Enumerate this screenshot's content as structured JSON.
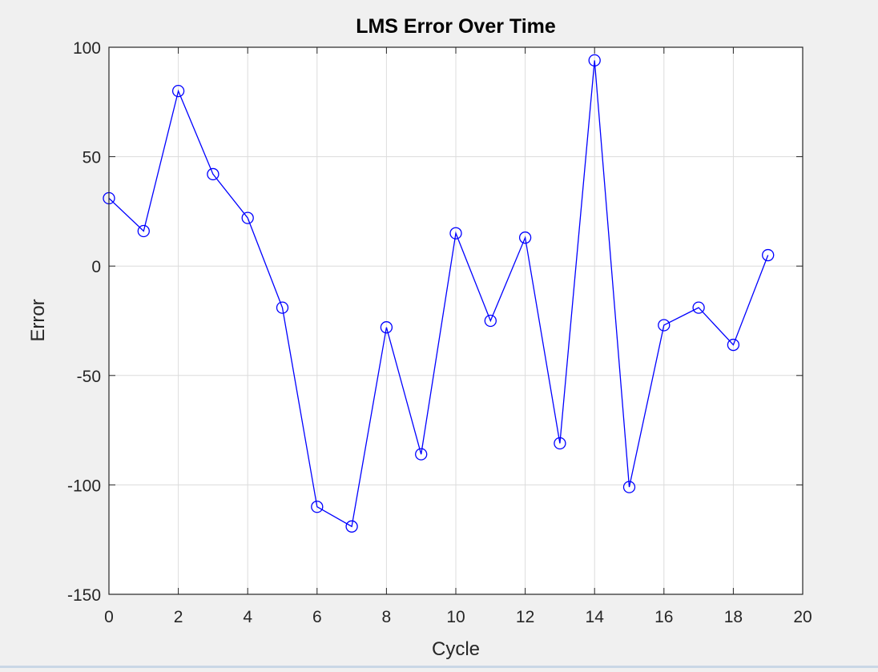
{
  "chart_data": {
    "type": "line",
    "title": "LMS Error Over Time",
    "xlabel": "Cycle",
    "ylabel": "Error",
    "xlim": [
      0,
      20
    ],
    "ylim": [
      -150,
      100
    ],
    "xticks": [
      0,
      2,
      4,
      6,
      8,
      10,
      12,
      14,
      16,
      18,
      20
    ],
    "yticks": [
      -150,
      -100,
      -50,
      0,
      50,
      100
    ],
    "grid": true,
    "marker": "circle",
    "series": [
      {
        "color": "#0000ff",
        "x": [
          0,
          1,
          2,
          3,
          4,
          5,
          6,
          7,
          8,
          9,
          10,
          11,
          12,
          13,
          14,
          15,
          16,
          17,
          18,
          19
        ],
        "y": [
          31,
          16,
          80,
          42,
          22,
          -19,
          -110,
          -119,
          -28,
          -86,
          15,
          -25,
          13,
          -81,
          94,
          -101,
          -27,
          -19,
          -36,
          5
        ]
      }
    ]
  }
}
